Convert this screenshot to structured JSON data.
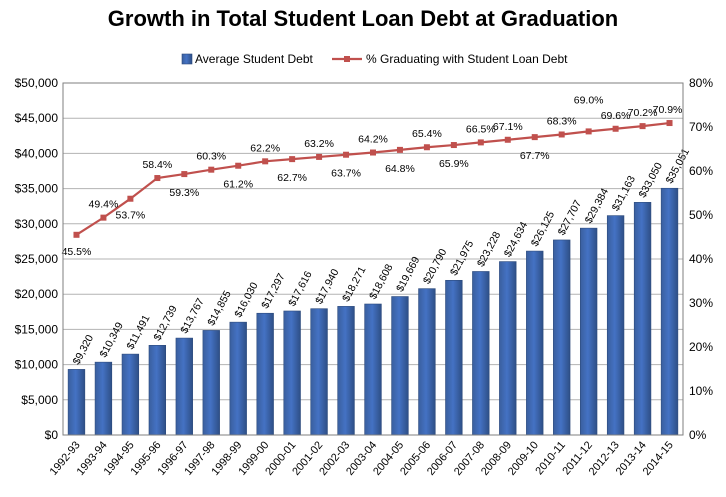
{
  "chart_data": {
    "type": "bar",
    "title": "Growth in Total Student Loan Debt at Graduation",
    "categories": [
      "1992-93",
      "1993-94",
      "1994-95",
      "1995-96",
      "1996-97",
      "1997-98",
      "1998-99",
      "1999-00",
      "2000-01",
      "2001-02",
      "2002-03",
      "2003-04",
      "2004-05",
      "2005-06",
      "2006-07",
      "2007-08",
      "2008-09",
      "2009-10",
      "2010-11",
      "2011-12",
      "2012-13",
      "2013-14",
      "2014-15"
    ],
    "series": [
      {
        "name": "Average Student Debt",
        "type": "bar",
        "axis": "left",
        "color": "#4472C4",
        "values": [
          9320,
          10349,
          11491,
          12739,
          13767,
          14855,
          16030,
          17297,
          17616,
          17940,
          18271,
          18608,
          19669,
          20790,
          21975,
          23228,
          24634,
          26125,
          27707,
          29384,
          31163,
          33050,
          35051
        ],
        "labels": [
          "$9,320",
          "$10,349",
          "$11,491",
          "$12,739",
          "$13,767",
          "$14,855",
          "$16,030",
          "$17,297",
          "$17,616",
          "$17,940",
          "$18,271",
          "$18,608",
          "$19,669",
          "$20,790",
          "$21,975",
          "$23,228",
          "$24,634",
          "$26,125",
          "$27,707",
          "$29,384",
          "$31,163",
          "$33,050",
          "$35,051"
        ]
      },
      {
        "name": "% Graduating with Student Loan Debt",
        "type": "line",
        "axis": "right",
        "color": "#C0504D",
        "values": [
          45.5,
          49.4,
          53.7,
          58.4,
          59.3,
          60.3,
          61.2,
          62.2,
          62.7,
          63.2,
          63.7,
          64.2,
          64.8,
          65.4,
          65.9,
          66.5,
          67.1,
          67.7,
          68.3,
          69.0,
          69.6,
          70.2,
          70.9
        ],
        "labels": [
          "45.5%",
          "49.4%",
          "53.7%",
          "58.4%",
          "59.3%",
          "60.3%",
          "61.2%",
          "62.2%",
          "62.7%",
          "63.2%",
          "63.7%",
          "64.2%",
          "64.8%",
          "65.4%",
          "65.9%",
          "66.5%",
          "67.1%",
          "67.7%",
          "68.3%",
          "69.0%",
          "69.6%",
          "70.2%",
          "70.9%"
        ]
      }
    ],
    "y_left": {
      "min": 0,
      "max": 50000,
      "step": 5000,
      "ticks": [
        "$0",
        "$5,000",
        "$10,000",
        "$15,000",
        "$20,000",
        "$25,000",
        "$30,000",
        "$35,000",
        "$40,000",
        "$45,000",
        "$50,000"
      ]
    },
    "y_right": {
      "min": 0,
      "max": 80,
      "step": 10,
      "ticks": [
        "0%",
        "10%",
        "20%",
        "30%",
        "40%",
        "50%",
        "60%",
        "70%",
        "80%"
      ]
    },
    "grid": true,
    "legend_position": "top"
  }
}
